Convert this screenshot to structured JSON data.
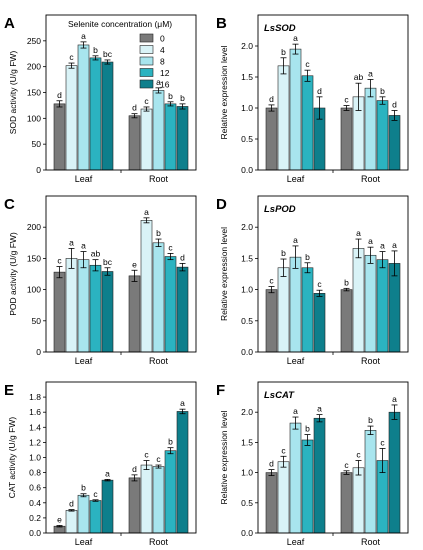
{
  "legend": {
    "title": "Selenite concentration (μM)",
    "entries": [
      "0",
      "4",
      "8",
      "12",
      "16"
    ]
  },
  "colors": {
    "series": [
      "#7a7a7a",
      "#d9f3f7",
      "#a8e5ee",
      "#2bb3c0",
      "#0e7f8c"
    ],
    "axis": "#000000",
    "bar_edge": "#222222"
  },
  "chart_data": [
    {
      "type": "bar",
      "panel": "A",
      "title": "",
      "gene_label": "",
      "xlabel": "",
      "ylabel": "SOD activity (U/g FW)",
      "categories": [
        "Leaf",
        "Root"
      ],
      "ylim": [
        0,
        300
      ],
      "yticks": [
        0,
        50,
        100,
        150,
        200,
        250
      ],
      "series": [
        {
          "name": "0",
          "values": [
            128,
            105
          ],
          "errors": [
            6,
            4
          ],
          "letters": [
            "d",
            "d"
          ]
        },
        {
          "name": "4",
          "values": [
            202,
            118
          ],
          "errors": [
            5,
            4
          ],
          "letters": [
            "c",
            "c"
          ]
        },
        {
          "name": "8",
          "values": [
            242,
            154
          ],
          "errors": [
            6,
            5
          ],
          "letters": [
            "a",
            "a"
          ]
        },
        {
          "name": "12",
          "values": [
            217,
            128
          ],
          "errors": [
            4,
            4
          ],
          "letters": [
            "b",
            "b"
          ]
        },
        {
          "name": "16",
          "values": [
            209,
            123
          ],
          "errors": [
            4,
            5
          ],
          "letters": [
            "bc",
            "b"
          ]
        }
      ]
    },
    {
      "type": "bar",
      "panel": "B",
      "title": "",
      "gene_label": "LsSOD",
      "xlabel": "",
      "ylabel": "Relative expression level",
      "categories": [
        "Leaf",
        "Root"
      ],
      "ylim": [
        0,
        2.5
      ],
      "yticks": [
        0.0,
        0.5,
        1.0,
        1.5,
        2.0
      ],
      "series": [
        {
          "name": "0",
          "values": [
            1.0,
            1.0
          ],
          "errors": [
            0.05,
            0.04
          ],
          "letters": [
            "d",
            "c"
          ]
        },
        {
          "name": "4",
          "values": [
            1.68,
            1.18
          ],
          "errors": [
            0.13,
            0.22
          ],
          "letters": [
            "b",
            "ab"
          ]
        },
        {
          "name": "8",
          "values": [
            1.95,
            1.32
          ],
          "errors": [
            0.08,
            0.14
          ],
          "letters": [
            "a",
            "a"
          ]
        },
        {
          "name": "12",
          "values": [
            1.52,
            1.12
          ],
          "errors": [
            0.09,
            0.06
          ],
          "letters": [
            "c",
            "b"
          ]
        },
        {
          "name": "16",
          "values": [
            1.0,
            0.88
          ],
          "errors": [
            0.18,
            0.08
          ],
          "letters": [
            "d",
            "d"
          ]
        }
      ]
    },
    {
      "type": "bar",
      "panel": "C",
      "title": "",
      "gene_label": "",
      "xlabel": "",
      "ylabel": "POD activity (U/g FW)",
      "categories": [
        "Leaf",
        "Root"
      ],
      "ylim": [
        0,
        250
      ],
      "yticks": [
        0,
        50,
        100,
        150,
        200
      ],
      "series": [
        {
          "name": "0",
          "values": [
            128,
            122
          ],
          "errors": [
            9,
            9
          ],
          "letters": [
            "c",
            "e"
          ]
        },
        {
          "name": "4",
          "values": [
            150,
            211
          ],
          "errors": [
            16,
            4
          ],
          "letters": [
            "a",
            "a"
          ]
        },
        {
          "name": "8",
          "values": [
            148,
            175
          ],
          "errors": [
            13,
            6
          ],
          "letters": [
            "a",
            "b"
          ]
        },
        {
          "name": "12",
          "values": [
            139,
            153
          ],
          "errors": [
            9,
            5
          ],
          "letters": [
            "ab",
            "c"
          ]
        },
        {
          "name": "16",
          "values": [
            129,
            136
          ],
          "errors": [
            6,
            6
          ],
          "letters": [
            "bc",
            "d"
          ]
        }
      ]
    },
    {
      "type": "bar",
      "panel": "D",
      "title": "",
      "gene_label": "LsPOD",
      "xlabel": "",
      "ylabel": "Relative expression level",
      "categories": [
        "Leaf",
        "Root"
      ],
      "ylim": [
        0,
        2.5
      ],
      "yticks": [
        0.0,
        0.5,
        1.0,
        1.5,
        2.0
      ],
      "series": [
        {
          "name": "0",
          "values": [
            1.0,
            1.0
          ],
          "errors": [
            0.05,
            0.02
          ],
          "letters": [
            "c",
            "b"
          ]
        },
        {
          "name": "4",
          "values": [
            1.35,
            1.66
          ],
          "errors": [
            0.14,
            0.15
          ],
          "letters": [
            "b",
            "a"
          ]
        },
        {
          "name": "8",
          "values": [
            1.52,
            1.55
          ],
          "errors": [
            0.18,
            0.13
          ],
          "letters": [
            "a",
            "a"
          ]
        },
        {
          "name": "12",
          "values": [
            1.35,
            1.48
          ],
          "errors": [
            0.08,
            0.13
          ],
          "letters": [
            "b",
            "a"
          ]
        },
        {
          "name": "16",
          "values": [
            0.94,
            1.42
          ],
          "errors": [
            0.05,
            0.2
          ],
          "letters": [
            "c",
            "a"
          ]
        }
      ]
    },
    {
      "type": "bar",
      "panel": "E",
      "title": "",
      "gene_label": "",
      "xlabel": "",
      "ylabel": "CAT activity (U/g FW)",
      "categories": [
        "Leaf",
        "Root"
      ],
      "ylim": [
        0,
        2.0
      ],
      "yticks": [
        0.0,
        0.2,
        0.4,
        0.6,
        0.8,
        1.0,
        1.2,
        1.4,
        1.6,
        1.8
      ],
      "series": [
        {
          "name": "0",
          "values": [
            0.09,
            0.73
          ],
          "errors": [
            0.01,
            0.04
          ],
          "letters": [
            "e",
            "d"
          ]
        },
        {
          "name": "4",
          "values": [
            0.3,
            0.9
          ],
          "errors": [
            0.01,
            0.06
          ],
          "letters": [
            "d",
            "c"
          ]
        },
        {
          "name": "8",
          "values": [
            0.5,
            0.88
          ],
          "errors": [
            0.02,
            0.02
          ],
          "letters": [
            "b",
            "c"
          ]
        },
        {
          "name": "12",
          "values": [
            0.43,
            1.09
          ],
          "errors": [
            0.01,
            0.04
          ],
          "letters": [
            "c",
            "b"
          ]
        },
        {
          "name": "16",
          "values": [
            0.7,
            1.61
          ],
          "errors": [
            0.01,
            0.03
          ],
          "letters": [
            "a",
            "a"
          ]
        }
      ]
    },
    {
      "type": "bar",
      "panel": "F",
      "title": "",
      "gene_label": "LsCAT",
      "xlabel": "",
      "ylabel": "Relative expression level",
      "categories": [
        "Leaf",
        "Root"
      ],
      "ylim": [
        0,
        2.5
      ],
      "yticks": [
        0.0,
        0.5,
        1.0,
        1.5,
        2.0
      ],
      "series": [
        {
          "name": "0",
          "values": [
            1.0,
            1.0
          ],
          "errors": [
            0.05,
            0.03
          ],
          "letters": [
            "d",
            "c"
          ]
        },
        {
          "name": "4",
          "values": [
            1.18,
            1.08
          ],
          "errors": [
            0.09,
            0.12
          ],
          "letters": [
            "c",
            "c"
          ]
        },
        {
          "name": "8",
          "values": [
            1.82,
            1.7
          ],
          "errors": [
            0.1,
            0.07
          ],
          "letters": [
            "a",
            "b"
          ]
        },
        {
          "name": "12",
          "values": [
            1.54,
            1.2
          ],
          "errors": [
            0.09,
            0.2
          ],
          "letters": [
            "b",
            "c"
          ]
        },
        {
          "name": "16",
          "values": [
            1.9,
            2.0
          ],
          "errors": [
            0.06,
            0.12
          ],
          "letters": [
            "a",
            "a"
          ]
        }
      ]
    }
  ]
}
